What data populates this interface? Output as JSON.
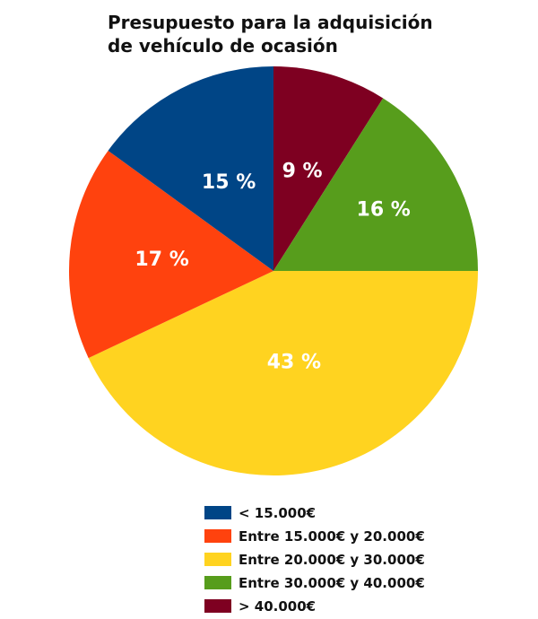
{
  "chart_data": {
    "type": "pie",
    "title_lines": [
      "Presupuesto para la adquisición",
      "de vehículo de ocasión"
    ],
    "categories": [
      "< 15.000€",
      "Entre 15.000€ y 20.000€",
      "Entre 20.000€ y 30.000€",
      "Entre 30.000€ y 40.000€",
      "> 40.000€"
    ],
    "values": [
      15,
      17,
      43,
      16,
      9
    ],
    "data_labels": [
      "15 %",
      "17 %",
      "43 %",
      "16 %",
      "9 %"
    ],
    "colors": [
      "#004586",
      "#ff420e",
      "#ffd320",
      "#579d1c",
      "#7e0021"
    ],
    "legend_position": "bottom"
  }
}
